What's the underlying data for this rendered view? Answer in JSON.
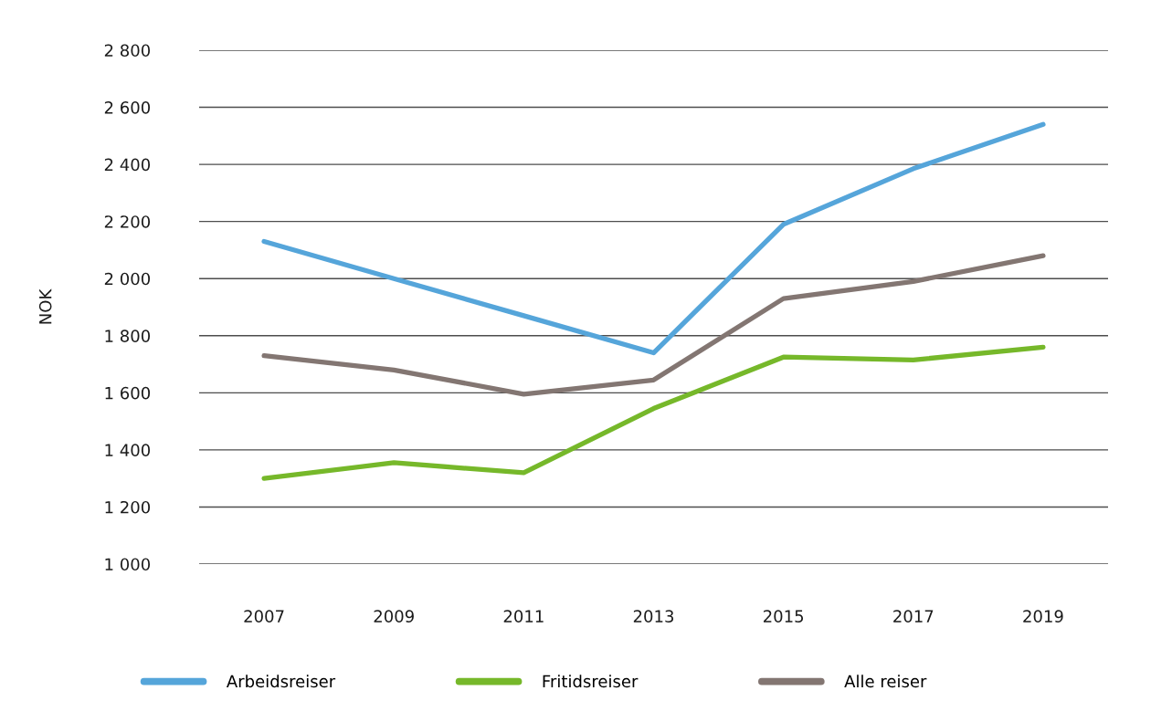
{
  "chart_data": {
    "type": "line",
    "ylabel": "NOK",
    "categories": [
      "2007",
      "2009",
      "2011",
      "2013",
      "2015",
      "2017",
      "2019"
    ],
    "series": [
      {
        "name": "Arbeidsreiser",
        "color": "#55a5da",
        "values": [
          2130,
          2000,
          1870,
          1740,
          2190,
          2385,
          2540
        ]
      },
      {
        "name": "Fritidsreiser",
        "color": "#76b82a",
        "values": [
          1300,
          1355,
          1320,
          1545,
          1725,
          1715,
          1760
        ]
      },
      {
        "name": "Alle reiser",
        "color": "#837672",
        "values": [
          1730,
          1680,
          1595,
          1645,
          1930,
          1990,
          2080
        ]
      }
    ],
    "ylim": [
      1000,
      2800
    ],
    "yticks": [
      {
        "value": 1000,
        "label": "1 000"
      },
      {
        "value": 1200,
        "label": "1 200"
      },
      {
        "value": 1400,
        "label": "1 400"
      },
      {
        "value": 1600,
        "label": "1 600"
      },
      {
        "value": 1800,
        "label": "1 800"
      },
      {
        "value": 2000,
        "label": "2 000"
      },
      {
        "value": 2200,
        "label": "2 200"
      },
      {
        "value": 2400,
        "label": "2 400"
      },
      {
        "value": 2600,
        "label": "2 600"
      },
      {
        "value": 2800,
        "label": "2 800"
      }
    ],
    "grid": "y",
    "legend": "bottom",
    "line_style": "solid"
  }
}
